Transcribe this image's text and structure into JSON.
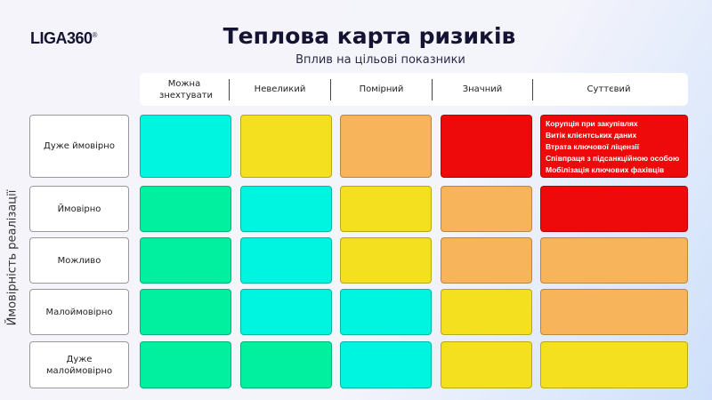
{
  "logo": {
    "text": "LIGA360",
    "mark": "®"
  },
  "title": "Теплова карта ризиків",
  "subtitle": "Вплив на цільові показники",
  "y_axis_label": "Ймовірність реалізації",
  "columns": [
    "Можна знехтувати",
    "Невеликий",
    "Помірний",
    "Значний",
    "Суттєвий"
  ],
  "rows": [
    "Дуже ймовірно",
    "Ймовірно",
    "Можливо",
    "Малоймовірно",
    "Дуже малоймовірно"
  ],
  "colors": {
    "green": "#00f0a0",
    "cyan": "#00f5e0",
    "yellow": "#f5e020",
    "orange": "#f8b45a",
    "red": "#ee0a0a"
  },
  "matrix": [
    [
      "cyan",
      "yellow",
      "orange",
      "red",
      "red"
    ],
    [
      "green",
      "cyan",
      "yellow",
      "orange",
      "red"
    ],
    [
      "green",
      "cyan",
      "yellow",
      "orange",
      "orange"
    ],
    [
      "green",
      "cyan",
      "cyan",
      "yellow",
      "orange"
    ],
    [
      "green",
      "green",
      "cyan",
      "yellow",
      "yellow"
    ]
  ],
  "risks": [
    "Корупція при закупівлях",
    "Витік клієнтських даних",
    "Втрата ключової ліцензії",
    "Співпраця з підсанкційною особою",
    "Мобілізація ключових фахівців"
  ]
}
